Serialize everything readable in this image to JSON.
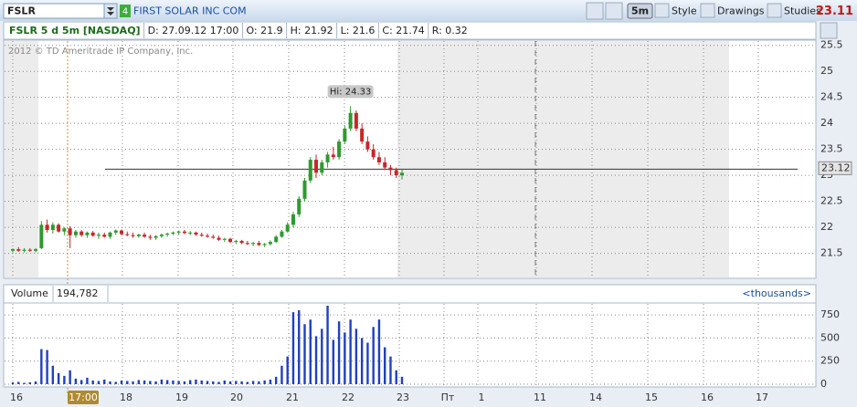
{
  "toolbar": {
    "symbol": "FSLR",
    "badge": "4",
    "company": "FIRST SOLAR INC COM",
    "timeframe": "5m",
    "buttons": [
      "Style",
      "Drawings",
      "Studies"
    ],
    "last": "23.11"
  },
  "header": {
    "title": "FSLR 5 d 5m [NASDAQ]",
    "fields": [
      "D: 27.09.12 17:00",
      "O: 21.9",
      "H: 21.92",
      "L: 21.6",
      "C: 21.74",
      "R: 0.32"
    ]
  },
  "copyright": "2012 © TD Ameritrade IP Company, Inc.",
  "price_chart": {
    "type": "candlestick",
    "ylim": [
      21.02,
      25.6
    ],
    "yticks": [
      21.5,
      22,
      22.5,
      23,
      23.5,
      24,
      24.5,
      25,
      25.5
    ],
    "grid": true,
    "up_color": "#2e9a2e",
    "down_color": "#c8262a",
    "hi_label": "Hi: 24.33",
    "level": 23.12,
    "candles": [
      [
        21.55,
        21.6,
        21.52,
        21.58
      ],
      [
        21.58,
        21.62,
        21.53,
        21.55
      ],
      [
        21.55,
        21.6,
        21.52,
        21.57
      ],
      [
        21.57,
        21.6,
        21.53,
        21.55
      ],
      [
        21.55,
        21.6,
        21.52,
        21.58
      ],
      [
        21.6,
        22.12,
        21.58,
        22.05
      ],
      [
        22.05,
        22.15,
        21.9,
        21.95
      ],
      [
        21.95,
        22.1,
        21.88,
        22.05
      ],
      [
        22.05,
        22.08,
        21.9,
        21.92
      ],
      [
        21.92,
        22.0,
        21.85,
        21.98
      ],
      [
        21.98,
        22.02,
        21.6,
        21.85
      ],
      [
        21.85,
        21.95,
        21.8,
        21.92
      ],
      [
        21.92,
        21.95,
        21.82,
        21.85
      ],
      [
        21.85,
        21.92,
        21.8,
        21.9
      ],
      [
        21.9,
        21.93,
        21.82,
        21.84
      ],
      [
        21.84,
        21.9,
        21.78,
        21.86
      ],
      [
        21.86,
        21.9,
        21.8,
        21.82
      ],
      [
        21.82,
        21.92,
        21.78,
        21.9
      ],
      [
        21.9,
        21.96,
        21.86,
        21.94
      ],
      [
        21.94,
        21.96,
        21.85,
        21.87
      ],
      [
        21.87,
        21.92,
        21.83,
        21.85
      ],
      [
        21.85,
        21.9,
        21.8,
        21.83
      ],
      [
        21.83,
        21.88,
        21.8,
        21.86
      ],
      [
        21.86,
        21.9,
        21.8,
        21.82
      ],
      [
        21.82,
        21.86,
        21.76,
        21.8
      ],
      [
        21.8,
        21.85,
        21.76,
        21.83
      ],
      [
        21.83,
        21.88,
        21.8,
        21.86
      ],
      [
        21.86,
        21.9,
        21.82,
        21.88
      ],
      [
        21.88,
        21.92,
        21.85,
        21.9
      ],
      [
        21.9,
        21.94,
        21.86,
        21.92
      ],
      [
        21.92,
        21.95,
        21.87,
        21.89
      ],
      [
        21.89,
        21.93,
        21.85,
        21.9
      ],
      [
        21.9,
        21.92,
        21.84,
        21.86
      ],
      [
        21.86,
        21.9,
        21.82,
        21.84
      ],
      [
        21.84,
        21.88,
        21.8,
        21.82
      ],
      [
        21.82,
        21.86,
        21.78,
        21.8
      ],
      [
        21.8,
        21.84,
        21.74,
        21.76
      ],
      [
        21.76,
        21.8,
        21.72,
        21.78
      ],
      [
        21.78,
        21.8,
        21.7,
        21.72
      ],
      [
        21.72,
        21.76,
        21.68,
        21.74
      ],
      [
        21.74,
        21.76,
        21.68,
        21.7
      ],
      [
        21.7,
        21.74,
        21.66,
        21.68
      ],
      [
        21.68,
        21.72,
        21.64,
        21.7
      ],
      [
        21.7,
        21.74,
        21.64,
        21.66
      ],
      [
        21.66,
        21.7,
        21.62,
        21.68
      ],
      [
        21.68,
        21.75,
        21.65,
        21.72
      ],
      [
        21.72,
        21.85,
        21.7,
        21.82
      ],
      [
        21.82,
        21.95,
        21.8,
        21.92
      ],
      [
        21.92,
        22.1,
        21.9,
        22.05
      ],
      [
        22.05,
        22.3,
        22.0,
        22.25
      ],
      [
        22.25,
        22.6,
        22.2,
        22.55
      ],
      [
        22.55,
        22.95,
        22.5,
        22.9
      ],
      [
        22.9,
        23.35,
        22.85,
        23.3
      ],
      [
        23.3,
        23.4,
        22.95,
        23.05
      ],
      [
        23.05,
        23.3,
        23.0,
        23.25
      ],
      [
        23.25,
        23.45,
        23.15,
        23.4
      ],
      [
        23.4,
        23.55,
        23.3,
        23.35
      ],
      [
        23.35,
        23.7,
        23.3,
        23.65
      ],
      [
        23.65,
        23.95,
        23.6,
        23.9
      ],
      [
        23.9,
        24.33,
        23.85,
        24.2
      ],
      [
        24.2,
        24.25,
        23.85,
        23.9
      ],
      [
        23.9,
        24.0,
        23.6,
        23.65
      ],
      [
        23.65,
        23.75,
        23.45,
        23.5
      ],
      [
        23.5,
        23.6,
        23.3,
        23.35
      ],
      [
        23.35,
        23.45,
        23.2,
        23.25
      ],
      [
        23.25,
        23.35,
        23.1,
        23.15
      ],
      [
        23.15,
        23.2,
        23.0,
        23.1
      ],
      [
        23.1,
        23.15,
        22.95,
        23.0
      ],
      [
        23.0,
        23.12,
        22.92,
        23.05
      ]
    ]
  },
  "volume_chart": {
    "type": "bar",
    "title": "Volume",
    "current": "194,782",
    "units": "<thousands>",
    "color": "#2040c0",
    "ylim": [
      0,
      860
    ],
    "yticks": [
      0,
      250,
      500,
      750
    ],
    "values": [
      20,
      25,
      15,
      20,
      30,
      380,
      370,
      200,
      120,
      90,
      150,
      60,
      45,
      70,
      40,
      35,
      50,
      30,
      25,
      40,
      35,
      30,
      45,
      40,
      35,
      30,
      50,
      45,
      40,
      35,
      30,
      45,
      50,
      40,
      35,
      30,
      25,
      40,
      30,
      35,
      30,
      25,
      35,
      30,
      40,
      50,
      80,
      200,
      300,
      780,
      800,
      650,
      700,
      520,
      600,
      850,
      480,
      680,
      560,
      700,
      600,
      500,
      450,
      620,
      700,
      400,
      300,
      150,
      80
    ]
  },
  "x_labels": [
    "16",
    "17:00",
    "18",
    "19",
    "20",
    "21",
    "22",
    "23",
    "Пт",
    "1",
    "11",
    "14",
    "15",
    "16",
    "17"
  ]
}
